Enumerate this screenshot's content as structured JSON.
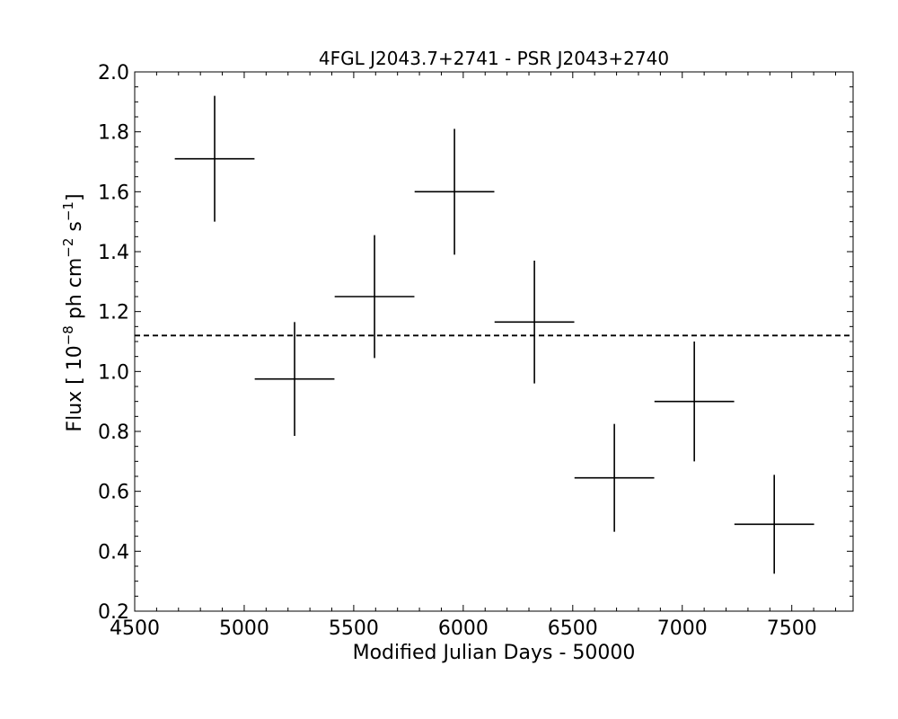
{
  "chart_data": {
    "type": "scatter",
    "title": "4FGL J2043.7+2741 - PSR J2043+2740",
    "xlabel": "Modified Julian Days - 50000",
    "ylabel": {
      "prefix": "Flux [ 10",
      "exp1": "−8",
      "mid": " ph cm",
      "exp2": "−2",
      "mid2": " s",
      "exp3": "−1",
      "suffix": "]"
    },
    "xlim": [
      4500,
      7780
    ],
    "ylim": [
      0.2,
      2.0
    ],
    "xticks": [
      4500,
      5000,
      5500,
      6000,
      6500,
      7000,
      7500
    ],
    "xtick_labels": [
      "4500",
      "5000",
      "5500",
      "6000",
      "6500",
      "7000",
      "7500"
    ],
    "yticks": [
      0.2,
      0.4,
      0.6,
      0.8,
      1.0,
      1.2,
      1.4,
      1.6,
      1.8,
      2.0
    ],
    "ytick_labels": [
      "0.2",
      "0.4",
      "0.6",
      "0.8",
      "1.0",
      "1.2",
      "1.4",
      "1.6",
      "1.8",
      "2.0"
    ],
    "mean_flux": 1.12,
    "grid": false,
    "points": [
      {
        "x": 4865,
        "xerr": 182,
        "y": 1.71,
        "yerr": 0.21
      },
      {
        "x": 5230,
        "xerr": 182,
        "y": 0.975,
        "yerr": 0.19
      },
      {
        "x": 5595,
        "xerr": 182,
        "y": 1.25,
        "yerr": 0.205
      },
      {
        "x": 5960,
        "xerr": 182,
        "y": 1.6,
        "yerr": 0.21
      },
      {
        "x": 6325,
        "xerr": 182,
        "y": 1.165,
        "yerr": 0.205
      },
      {
        "x": 6690,
        "xerr": 182,
        "y": 0.645,
        "yerr": 0.18
      },
      {
        "x": 7055,
        "xerr": 182,
        "y": 0.9,
        "yerr": 0.2
      },
      {
        "x": 7420,
        "xerr": 182,
        "y": 0.49,
        "yerr": 0.165
      }
    ]
  }
}
